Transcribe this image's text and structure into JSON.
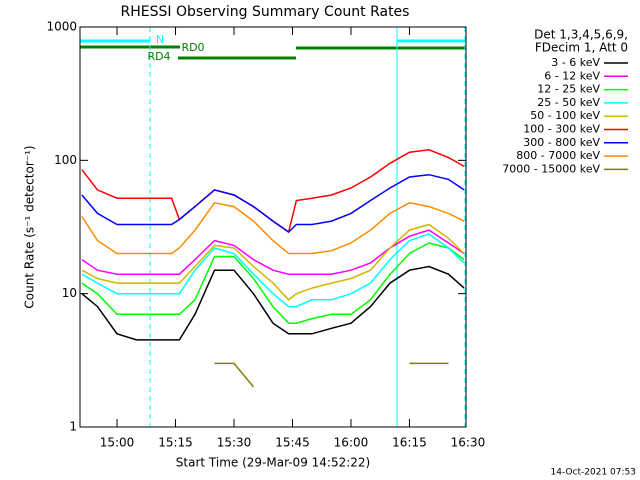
{
  "chart_data": {
    "type": "line",
    "title": "RHESSI Observing Summary Count Rates",
    "x_label": "Start Time (29-Mar-09 14:52:22)",
    "y_label": "Count Rate (s⁻¹ detector⁻¹)",
    "legend_header": [
      "Det 1,3,4,5,6,9,",
      "FDecim 1, Att 0"
    ],
    "annotations": [
      "N",
      "RD0",
      "RD4"
    ],
    "footer": "14-Oct-2021 07:53",
    "log_y": true,
    "xlim": [
      50.5,
      149.5
    ],
    "ylim": [
      1,
      1000
    ],
    "yticks": [
      1,
      10,
      100,
      1000
    ],
    "xticks": [
      {
        "value": 60,
        "label": "15:00"
      },
      {
        "value": 75,
        "label": "15:15"
      },
      {
        "value": 90,
        "label": "15:30"
      },
      {
        "value": 105,
        "label": "15:45"
      },
      {
        "value": 120,
        "label": "16:00"
      },
      {
        "value": 135,
        "label": "16:15"
      },
      {
        "value": 150,
        "label": "16:30"
      }
    ],
    "x": [
      51,
      55,
      60,
      65,
      70,
      74,
      76,
      80,
      85,
      90,
      95,
      100,
      104,
      106,
      110,
      115,
      120,
      125,
      130,
      135,
      140,
      145,
      149
    ],
    "series": [
      {
        "name": "3 - 6 keV",
        "color": "#000000",
        "values": [
          10,
          8,
          5,
          4.5,
          4.5,
          4.5,
          4.5,
          7,
          15,
          15,
          10,
          6,
          5,
          5,
          5,
          5.5,
          6,
          8,
          12,
          15,
          16,
          14,
          11
        ]
      },
      {
        "name": "6 - 12 keV",
        "color": "#ff00ff",
        "values": [
          18,
          15,
          14,
          14,
          14,
          14,
          14,
          18,
          25,
          23,
          18,
          15,
          14,
          14,
          14,
          14,
          15,
          17,
          22,
          27,
          30,
          24,
          20
        ]
      },
      {
        "name": "12 - 25 keV",
        "color": "#00ff00",
        "values": [
          12,
          10,
          7,
          7,
          7,
          7,
          7,
          9,
          19,
          19,
          13,
          8,
          6,
          6,
          6.5,
          7,
          7,
          9,
          14,
          20,
          24,
          22,
          18
        ]
      },
      {
        "name": "25 - 50 keV",
        "color": "#00ffff",
        "values": [
          14,
          12,
          10,
          10,
          10,
          10,
          10,
          15,
          22,
          20,
          14,
          10,
          8,
          8,
          9,
          9,
          10,
          12,
          18,
          25,
          28,
          22,
          17
        ]
      },
      {
        "name": "50 - 100 keV",
        "color": "#d4b400",
        "values": [
          15,
          13,
          12,
          12,
          12,
          12,
          12,
          16,
          23,
          22,
          16,
          12,
          9,
          10,
          11,
          12,
          13,
          15,
          22,
          30,
          33,
          26,
          20
        ]
      },
      {
        "name": "100 - 300 keV",
        "color": "#ff0000",
        "values": [
          85,
          60,
          52,
          52,
          52,
          52,
          36,
          45,
          60,
          55,
          45,
          35,
          29,
          50,
          52,
          55,
          62,
          75,
          95,
          115,
          120,
          105,
          90
        ]
      },
      {
        "name": "300 - 800 keV",
        "color": "#0000ff",
        "values": [
          55,
          40,
          33,
          33,
          33,
          33,
          36,
          45,
          60,
          55,
          45,
          35,
          29,
          33,
          33,
          35,
          40,
          50,
          62,
          75,
          78,
          72,
          60
        ]
      },
      {
        "name": "800 - 7000 keV",
        "color": "#ff8c00",
        "values": [
          38,
          25,
          20,
          20,
          20,
          20,
          22,
          30,
          48,
          45,
          35,
          25,
          20,
          20,
          20,
          21,
          24,
          30,
          40,
          48,
          45,
          40,
          35
        ]
      },
      {
        "name": "7000 - 15000 keV",
        "color": "#808000",
        "values": [
          null,
          null,
          null,
          null,
          null,
          null,
          null,
          null,
          3,
          3,
          2,
          null,
          null,
          null,
          null,
          null,
          null,
          null,
          null,
          3,
          3,
          3,
          null
        ]
      }
    ]
  }
}
